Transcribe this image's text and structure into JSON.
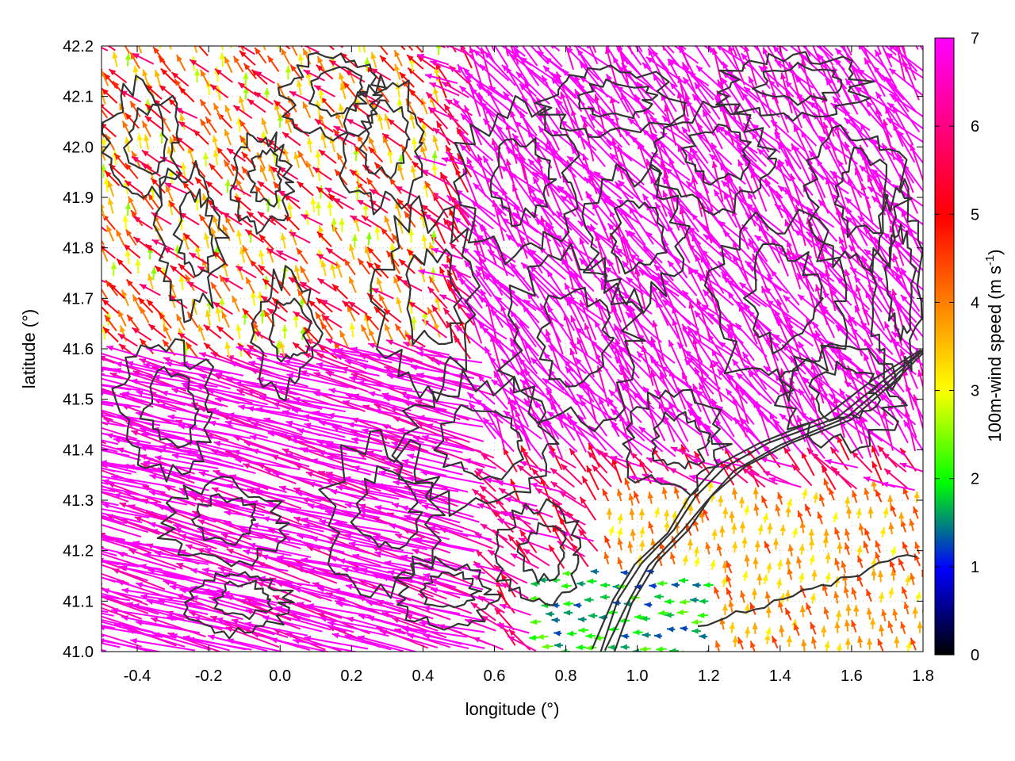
{
  "chart_data": {
    "type": "vector-field",
    "title": "",
    "xlabel": "longitude (°)",
    "ylabel": "latitude (°)",
    "xlim": [
      -0.5,
      1.8
    ],
    "ylim": [
      41.0,
      42.2
    ],
    "x_ticks": [
      -0.4,
      -0.2,
      0.0,
      0.2,
      0.4,
      0.6,
      0.8,
      1.0,
      1.2,
      1.4,
      1.6,
      1.8
    ],
    "x_tick_labels": [
      "-0.4",
      "-0.2",
      "0.0",
      "0.2",
      "0.4",
      "0.6",
      "0.8",
      "1.0",
      "1.2",
      "1.4",
      "1.6",
      "1.8"
    ],
    "y_ticks": [
      41.0,
      41.1,
      41.2,
      41.3,
      41.4,
      41.5,
      41.6,
      41.7,
      41.8,
      41.9,
      42.0,
      42.1,
      42.2
    ],
    "y_tick_labels": [
      "41.0",
      "41.1",
      "41.2",
      "41.3",
      "41.4",
      "41.5",
      "41.6",
      "41.7",
      "41.8",
      "41.9",
      "42.0",
      "42.1",
      "42.2"
    ],
    "grid": true,
    "colorbar": {
      "label_main": "100m-wind speed (m s",
      "label_sup": "-1",
      "label_end": ")",
      "range": [
        0,
        7
      ],
      "ticks": [
        0,
        1,
        2,
        3,
        4,
        5,
        6,
        7
      ],
      "tick_labels": [
        "0",
        "1",
        "2",
        "3",
        "4",
        "5",
        "6",
        "7"
      ],
      "colors": [
        "#000000",
        "#0000ff",
        "#00ff00",
        "#ffff00",
        "#ff8000",
        "#ff0000",
        "#ff00ff"
      ]
    },
    "contour_color": "#333333",
    "vectors_description_regions": [
      {
        "lon": [
          -0.5,
          0.6
        ],
        "lat": [
          41.0,
          41.6
        ],
        "speed": 7,
        "direction": "west-northwest"
      },
      {
        "lon": [
          0.6,
          1.8
        ],
        "lat": [
          41.4,
          42.2
        ],
        "speed": 7,
        "direction": "northwest"
      },
      {
        "lon": [
          0.8,
          1.8
        ],
        "lat": [
          41.0,
          41.3
        ],
        "speed": 3.5,
        "direction": "north"
      },
      {
        "lon": [
          0.7,
          1.2
        ],
        "lat": [
          41.0,
          41.15
        ],
        "speed": 1.5,
        "direction": "west"
      },
      {
        "lon": [
          -0.5,
          0.4
        ],
        "lat": [
          41.6,
          42.2
        ],
        "speed": 4.5,
        "direction": "northwest"
      }
    ]
  }
}
